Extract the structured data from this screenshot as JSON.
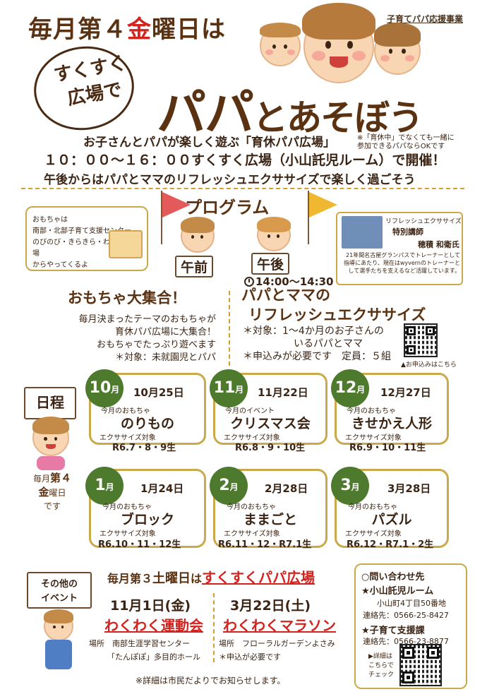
{
  "header": {
    "sponsor": "子育てパパ応援事業",
    "headline_pre": "毎月第４",
    "headline_kin": "金",
    "headline_post": "曜日は",
    "bubble_line1": "すくすく",
    "bubble_line2": "広場で",
    "title_papa": "パパ",
    "title_rest": "とあそぼう"
  },
  "intro": {
    "line1": "お子さんとパパが楽しく遊ぶ「育休パパ広場」",
    "note_line1": "※「育休中」でなくても一緒に",
    "note_line2": "参加できるパパならOKです",
    "line2": "１０：００〜１６：００すくすく広場（小山託児ルーム）で開催！",
    "line3": "午後からはパパとママのリフレッシュエクササイズで楽しく過ごそう"
  },
  "program": {
    "title": "プログラム",
    "toy_box": [
      "おもちゃは",
      "南部・北部子育て支援センター、",
      "のびのび・きらきら・わくわく広場",
      "からやってくるよ"
    ],
    "am_label": "午前",
    "pm_label": "午後",
    "pm_time": "14:00〜14:30",
    "lecturer": {
      "line1": "リフレッシュエクササイズ",
      "line2": "特別講師",
      "name": "穂積 和衛氏",
      "desc": "21年間名古屋グランパスでトレーナーとして指導にあたり、現在はwyvernのトレーナーとして選手たちを支えるなど活躍しています。"
    },
    "toy": {
      "title": "おもちゃ大集合！",
      "lines": [
        "毎月決まったテーマのおもちゃが",
        "育休パパ広場に大集合！",
        "おもちゃでたっぷり遊べます"
      ],
      "target": "＊対象：未就園児とパパ"
    },
    "exercise": {
      "title1": "パパとママの",
      "title2": "リフレッシュエクササイズ",
      "target1": "＊対象：1〜4か月のお子さんの",
      "target2": "いるパパとママ",
      "apply": "＊申込みが必要です　定員：５組",
      "qr_caption": "▲お申込みはこちら"
    }
  },
  "schedule": {
    "sign": "日程",
    "every_pre": "毎月",
    "every_k1": "第４",
    "every_k2": "金",
    "every_post": "曜日",
    "every_end": "です",
    "cards": [
      {
        "month": "10",
        "unit": "月",
        "date": "10月25日",
        "label": "今月のおもちゃ",
        "theme": "のりもの",
        "ex": "エクササイズ対象",
        "ages": "R6.7・8・9生"
      },
      {
        "month": "11",
        "unit": "月",
        "date": "11月22日",
        "label": "今月のイベント",
        "theme": "クリスマス会",
        "ex": "エクササイズ対象",
        "ages": "R6.8・9・10生"
      },
      {
        "month": "12",
        "unit": "月",
        "date": "12月27日",
        "label": "今月のおもちゃ",
        "theme": "きせかえ人形",
        "ex": "エクササイズ対象",
        "ages": "R6.9・10・11生"
      },
      {
        "month": "1",
        "unit": "月",
        "date": "1月24日",
        "label": "今月のおもちゃ",
        "theme": "ブロック",
        "ex": "エクササイズ対象",
        "ages": "R6.10・11・12生"
      },
      {
        "month": "2",
        "unit": "月",
        "date": "2月28日",
        "label": "今月のおもちゃ",
        "theme": "ままごと",
        "ex": "エクササイズ対象",
        "ages": "R6.11・12・R7.1生"
      },
      {
        "month": "3",
        "unit": "月",
        "date": "3月28日",
        "label": "今月のおもちゃ",
        "theme": "パズル",
        "ex": "エクササイズ対象",
        "ages": "R6.12・R7.1・2生"
      }
    ]
  },
  "events": {
    "sign1": "その他の",
    "sign2": "イベント",
    "third_pre": "毎月第３",
    "third_sat": "土曜日",
    "third_ha": "は",
    "third_link": "すくすくパパ広場",
    "ev1": {
      "date": "11月1日(金)",
      "name": "わくわく運動会",
      "place1": "場所　南部生涯学習センター",
      "place2": "「たんぽぽ」多目的ホール"
    },
    "ev2": {
      "date": "3月22日(土)",
      "name": "わくわくマラソン",
      "place": "場所　フローラルガーデンよさみ",
      "note": "＊申込が必要です"
    },
    "footer": "※詳細は市民だよりでお知らせします。"
  },
  "contact": {
    "title": "○問い合わせ先",
    "org1": "★小山託児ルーム",
    "addr1": "小山町4丁目50番地",
    "tel1": "連絡先：0566-25-8427",
    "org2": "★子育て支援課",
    "tel2": "連絡先：0566-23-8877",
    "qr_caption1": "▶詳細は",
    "qr_caption2": "こちらで",
    "qr_caption3": "チェック"
  },
  "colors": {
    "brown": "#5a3212",
    "red": "#d2231f",
    "gold": "#c9a94a",
    "green": "#4e7a2e"
  }
}
